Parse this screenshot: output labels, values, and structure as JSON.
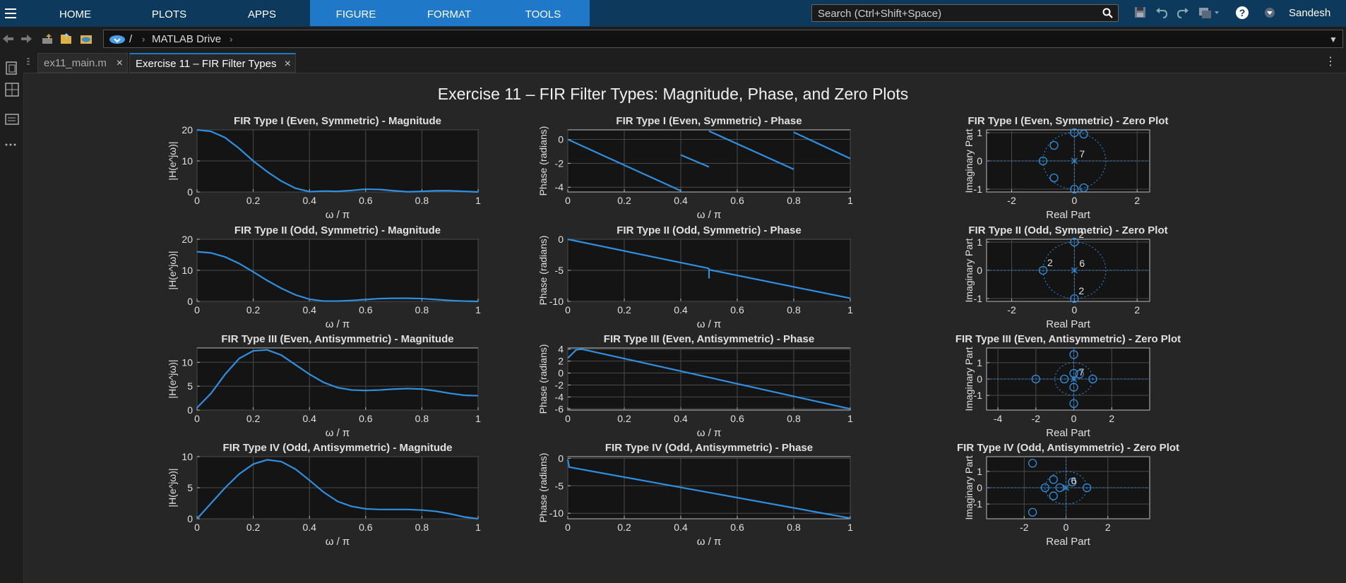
{
  "toolstrip": {
    "tabs": [
      {
        "label": "HOME",
        "active": false
      },
      {
        "label": "PLOTS",
        "active": false
      },
      {
        "label": "APPS",
        "active": false
      },
      {
        "label": "FIGURE",
        "active": true
      },
      {
        "label": "FORMAT",
        "active": true
      },
      {
        "label": "TOOLS",
        "active": true
      }
    ],
    "search_placeholder": "Search (Ctrl+Shift+Space)",
    "user": "Sandesh"
  },
  "address": {
    "root": "/",
    "folder": "MATLAB Drive"
  },
  "doc_tabs": [
    {
      "label": "ex11_main.m",
      "active": false
    },
    {
      "label": "Exercise 11 – FIR Filter Types",
      "active": true
    }
  ],
  "figure": {
    "title": "Exercise 11 – FIR Filter Types: Magnitude, Phase, and Zero Plots",
    "colors": {
      "line": "#2f8fe0",
      "axes_bg": "#141414",
      "grid": "#4a4a4a",
      "text": "#e0e0e0"
    },
    "labels": {
      "omega_xlabel": "ω / π",
      "mag_ylabel": "|H(e^jω)|",
      "phase_ylabel": "Phase (radians)",
      "zero_xlabel": "Real Part",
      "zero_ylabel": "Imaginary Part"
    },
    "rows": [
      {
        "mag": {
          "title": "FIR Type I (Even, Symmetric) - Magnitude",
          "ylim": [
            0,
            20
          ],
          "yticks": [
            0,
            10,
            20
          ]
        },
        "phase": {
          "title": "FIR Type I (Even, Symmetric) - Phase",
          "ylim": [
            -4.4,
            0.8
          ],
          "yticks": [
            -4,
            -2,
            0
          ]
        },
        "zero": {
          "title": "FIR Type I (Even, Symmetric) - Zero Plot",
          "xlim": [
            -2.8,
            2.4
          ],
          "ylim": [
            -1.1,
            1.1
          ],
          "xticks": [
            -2,
            0,
            2
          ],
          "yticks": [
            -1,
            0,
            1
          ],
          "pole_count": "7"
        }
      },
      {
        "mag": {
          "title": "FIR Type II (Odd, Symmetric) - Magnitude",
          "ylim": [
            0,
            20
          ],
          "yticks": [
            0,
            10,
            20
          ]
        },
        "phase": {
          "title": "FIR Type II (Odd, Symmetric) - Phase",
          "ylim": [
            -10,
            0
          ],
          "yticks": [
            -10,
            -5,
            0
          ]
        },
        "zero": {
          "title": "FIR Type II (Odd, Symmetric) - Zero Plot",
          "xlim": [
            -2.8,
            2.4
          ],
          "ylim": [
            -1.1,
            1.1
          ],
          "xticks": [
            -2,
            0,
            2
          ],
          "yticks": [
            -1,
            0,
            1
          ],
          "pole_count": "6",
          "multiplicity_labels": [
            "2",
            "2",
            "2"
          ]
        }
      },
      {
        "mag": {
          "title": "FIR Type III (Even, Antisymmetric) - Magnitude",
          "ylim": [
            0,
            13
          ],
          "yticks": [
            0,
            5,
            10
          ]
        },
        "phase": {
          "title": "FIR Type III (Even, Antisymmetric) - Phase",
          "ylim": [
            -6.2,
            4.2
          ],
          "yticks": [
            -6,
            -4,
            -2,
            0,
            2,
            4
          ]
        },
        "zero": {
          "title": "FIR Type III (Even, Antisymmetric) - Zero Plot",
          "xlim": [
            -4.6,
            4.0
          ],
          "ylim": [
            -1.9,
            1.9
          ],
          "xticks": [
            -4,
            -2,
            0,
            2
          ],
          "yticks": [
            -1,
            0,
            1
          ],
          "pole_count": "7"
        }
      },
      {
        "mag": {
          "title": "FIR Type IV (Odd, Antisymmetric) - Magnitude",
          "ylim": [
            0,
            10
          ],
          "yticks": [
            0,
            5,
            10
          ]
        },
        "phase": {
          "title": "FIR Type IV (Odd, Antisymmetric) - Phase",
          "ylim": [
            -11,
            0.3
          ],
          "yticks": [
            -10,
            -5,
            0
          ]
        },
        "zero": {
          "title": "FIR Type IV (Odd, Antisymmetric) - Zero Plot",
          "xlim": [
            -3.8,
            4.0
          ],
          "ylim": [
            -1.9,
            1.9
          ],
          "xticks": [
            -2,
            0,
            2
          ],
          "yticks": [
            -1,
            0,
            1
          ],
          "pole_count": "6"
        }
      }
    ]
  },
  "chart_data": [
    {
      "type": "line",
      "title": "FIR Type I (Even, Symmetric) - Magnitude",
      "xlabel": "ω / π",
      "ylabel": "|H(e^jω)|",
      "xlim": [
        0,
        1
      ],
      "ylim": [
        0,
        20
      ],
      "x": [
        0,
        0.05,
        0.1,
        0.15,
        0.2,
        0.25,
        0.3,
        0.35,
        0.4,
        0.45,
        0.5,
        0.55,
        0.6,
        0.65,
        0.7,
        0.75,
        0.8,
        0.85,
        0.9,
        0.95,
        1
      ],
      "y": [
        20,
        19.5,
        17.5,
        14,
        10,
        6.5,
        3.5,
        1.2,
        0.1,
        0.3,
        0.2,
        0.5,
        0.9,
        0.8,
        0.4,
        0.05,
        0.2,
        0.4,
        0.4,
        0.2,
        0
      ]
    },
    {
      "type": "line",
      "title": "FIR Type I (Even, Symmetric) - Phase",
      "xlabel": "ω / π",
      "ylabel": "Phase (radians)",
      "xlim": [
        0,
        1
      ],
      "ylim": [
        -4.4,
        0.8
      ],
      "segments": [
        [
          [
            0,
            0
          ],
          [
            0.4,
            -4.3
          ]
        ],
        [
          [
            0.4,
            -1.3
          ],
          [
            0.5,
            -2.3
          ]
        ],
        [
          [
            0.5,
            0.7
          ],
          [
            0.8,
            -2.5
          ]
        ],
        [
          [
            0.8,
            0.6
          ],
          [
            1,
            -1.6
          ]
        ]
      ]
    },
    {
      "type": "scatter",
      "title": "FIR Type I (Even, Symmetric) - Zero Plot",
      "xlabel": "Real Part",
      "ylabel": "Imaginary Part",
      "zeros": [
        [
          -1,
          0
        ],
        [
          -0.65,
          0.55
        ],
        [
          -0.65,
          -0.6
        ],
        [
          0,
          1
        ],
        [
          0,
          -1
        ],
        [
          0.3,
          0.95
        ],
        [
          0.3,
          -0.95
        ]
      ],
      "poles": [
        [
          0,
          0
        ]
      ],
      "pole_count": "7"
    },
    {
      "type": "line",
      "title": "FIR Type II (Odd, Symmetric) - Magnitude",
      "xlabel": "ω / π",
      "ylabel": "|H(e^jω)|",
      "xlim": [
        0,
        1
      ],
      "ylim": [
        0,
        20
      ],
      "x": [
        0,
        0.05,
        0.1,
        0.15,
        0.2,
        0.25,
        0.3,
        0.35,
        0.4,
        0.45,
        0.5,
        0.55,
        0.6,
        0.65,
        0.7,
        0.75,
        0.8,
        0.85,
        0.9,
        0.95,
        1
      ],
      "y": [
        16,
        15.6,
        14.3,
        12.2,
        9.5,
        6.7,
        4.2,
        2.1,
        0.7,
        0.1,
        0.1,
        0.3,
        0.6,
        0.9,
        1,
        1,
        0.9,
        0.6,
        0.3,
        0.1,
        0
      ]
    },
    {
      "type": "line",
      "title": "FIR Type II (Odd, Symmetric) - Phase",
      "xlabel": "ω / π",
      "ylabel": "Phase (radians)",
      "xlim": [
        0,
        1
      ],
      "ylim": [
        -10,
        0
      ],
      "segments": [
        [
          [
            0,
            0
          ],
          [
            0.5,
            -4.7
          ]
        ],
        [
          [
            0.5,
            -6.3
          ],
          [
            0.5,
            -4.7
          ]
        ],
        [
          [
            0.5,
            -4.9
          ],
          [
            1,
            -9.5
          ]
        ]
      ]
    },
    {
      "type": "scatter",
      "title": "FIR Type II (Odd, Symmetric) - Zero Plot",
      "xlabel": "Real Part",
      "ylabel": "Imaginary Part",
      "zeros": [
        [
          -1,
          0
        ],
        [
          0,
          1
        ],
        [
          0,
          -1
        ]
      ],
      "poles": [
        [
          0,
          0
        ]
      ],
      "pole_count": "6",
      "multiplicity": [
        "2",
        "2",
        "2"
      ]
    },
    {
      "type": "line",
      "title": "FIR Type III (Even, Antisymmetric) - Magnitude",
      "xlabel": "ω / π",
      "ylabel": "|H(e^jω)|",
      "xlim": [
        0,
        1
      ],
      "ylim": [
        0,
        13
      ],
      "x": [
        0,
        0.05,
        0.1,
        0.15,
        0.2,
        0.25,
        0.3,
        0.35,
        0.4,
        0.45,
        0.5,
        0.55,
        0.6,
        0.65,
        0.7,
        0.75,
        0.8,
        0.85,
        0.9,
        0.95,
        1
      ],
      "y": [
        0.5,
        3.5,
        7.5,
        10.8,
        12.4,
        12.6,
        11.5,
        9.5,
        7.5,
        5.8,
        4.7,
        4.2,
        4.1,
        4.2,
        4.4,
        4.5,
        4.4,
        4,
        3.5,
        3.1,
        3
      ]
    },
    {
      "type": "line",
      "title": "FIR Type III (Even, Antisymmetric) - Phase",
      "xlabel": "ω / π",
      "ylabel": "Phase (radians)",
      "xlim": [
        0,
        1
      ],
      "ylim": [
        -6.2,
        4.2
      ],
      "segments": [
        [
          [
            0,
            2.5
          ],
          [
            0.03,
            3.9
          ],
          [
            0.05,
            4
          ],
          [
            1,
            -6
          ]
        ]
      ]
    },
    {
      "type": "scatter",
      "title": "FIR Type III (Even, Antisymmetric) - Zero Plot",
      "xlabel": "Real Part",
      "ylabel": "Imaginary Part",
      "zeros": [
        [
          -2,
          0
        ],
        [
          -0.5,
          0
        ],
        [
          1,
          0
        ],
        [
          0,
          1.5
        ],
        [
          0,
          -1.5
        ],
        [
          0,
          0.35
        ],
        [
          0,
          -0.5
        ],
        [
          0.3,
          0.3
        ]
      ],
      "poles": [
        [
          0,
          0
        ]
      ],
      "pole_count": "7"
    },
    {
      "type": "line",
      "title": "FIR Type IV (Odd, Antisymmetric) - Magnitude",
      "xlabel": "ω / π",
      "ylabel": "|H(e^jω)|",
      "xlim": [
        0,
        1
      ],
      "ylim": [
        0,
        10
      ],
      "x": [
        0,
        0.05,
        0.1,
        0.15,
        0.2,
        0.25,
        0.3,
        0.35,
        0.4,
        0.45,
        0.5,
        0.55,
        0.6,
        0.65,
        0.7,
        0.75,
        0.8,
        0.85,
        0.9,
        0.95,
        1
      ],
      "y": [
        0,
        2.5,
        5,
        7.2,
        8.8,
        9.5,
        9.2,
        8,
        6.2,
        4.3,
        2.8,
        2,
        1.6,
        1.5,
        1.5,
        1.5,
        1.4,
        1.2,
        0.8,
        0.3,
        0
      ]
    },
    {
      "type": "line",
      "title": "FIR Type IV (Odd, Antisymmetric) - Phase",
      "xlabel": "ω / π",
      "ylabel": "Phase (radians)",
      "xlim": [
        0,
        1
      ],
      "ylim": [
        -11,
        0.3
      ],
      "segments": [
        [
          [
            0,
            -0.2
          ],
          [
            0.005,
            -1.6
          ],
          [
            1,
            -10.9
          ]
        ]
      ]
    },
    {
      "type": "scatter",
      "title": "FIR Type IV (Odd, Antisymmetric) - Zero Plot",
      "xlabel": "Real Part",
      "ylabel": "Imaginary Part",
      "zeros": [
        [
          -1.6,
          1.5
        ],
        [
          -1.6,
          -1.5
        ],
        [
          -1,
          0
        ],
        [
          1,
          0
        ],
        [
          -0.6,
          0.5
        ],
        [
          -0.6,
          -0.5
        ],
        [
          0.3,
          0.35
        ],
        [
          -0.3,
          0
        ]
      ],
      "poles": [
        [
          0,
          0
        ]
      ],
      "pole_count": "6"
    }
  ]
}
